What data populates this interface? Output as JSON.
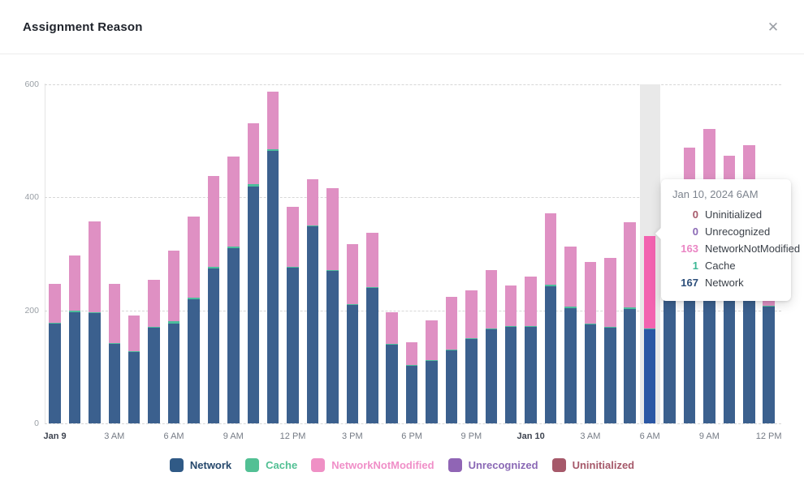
{
  "header": {
    "title": "Assignment Reason",
    "close_label": "✕"
  },
  "tooltip": {
    "title": "Jan 10, 2024 6AM",
    "rows": [
      {
        "value": "0",
        "label": "Uninitialized",
        "color": "#a6596a"
      },
      {
        "value": "0",
        "label": "Unrecognized",
        "color": "#8a68b5"
      },
      {
        "value": "163",
        "label": "NetworkNotModified",
        "color": "#ea85c4"
      },
      {
        "value": "1",
        "label": "Cache",
        "color": "#3db795"
      },
      {
        "value": "167",
        "label": "Network",
        "color": "#2b4d79"
      }
    ]
  },
  "chart_data": {
    "type": "bar",
    "stacked": true,
    "title": "Assignment Reason",
    "xlabel": "",
    "ylabel": "",
    "ylim": [
      0,
      600
    ],
    "y_ticks": [
      0,
      200,
      400,
      600
    ],
    "grid": "dashed horizontal",
    "legend_position": "bottom center",
    "bar_count": 37,
    "x_ticks": [
      {
        "index": 0,
        "label": "Jan 9",
        "bold": true
      },
      {
        "index": 3,
        "label": "3 AM",
        "bold": false
      },
      {
        "index": 6,
        "label": "6 AM",
        "bold": false
      },
      {
        "index": 9,
        "label": "9 AM",
        "bold": false
      },
      {
        "index": 12,
        "label": "12 PM",
        "bold": false
      },
      {
        "index": 15,
        "label": "3 PM",
        "bold": false
      },
      {
        "index": 18,
        "label": "6 PM",
        "bold": false
      },
      {
        "index": 21,
        "label": "9 PM",
        "bold": false
      },
      {
        "index": 24,
        "label": "Jan 10",
        "bold": true
      },
      {
        "index": 27,
        "label": "3 AM",
        "bold": false
      },
      {
        "index": 30,
        "label": "6 AM",
        "bold": false
      },
      {
        "index": 33,
        "label": "9 AM",
        "bold": false
      },
      {
        "index": 36,
        "label": "12 PM",
        "bold": false
      }
    ],
    "highlighted_index": 30,
    "stack_order": [
      "Network",
      "Cache",
      "NetworkNotModified",
      "Unrecognized",
      "Uninitialized"
    ],
    "series": [
      {
        "name": "Network",
        "values": [
          177,
          196,
          195,
          141,
          127,
          169,
          177,
          220,
          274,
          310,
          419,
          482,
          275,
          348,
          269,
          209,
          239,
          140,
          102,
          111,
          129,
          149,
          166,
          170,
          170,
          242,
          204,
          176,
          170,
          202,
          167,
          220,
          280,
          300,
          270,
          285,
          206
        ]
      },
      {
        "name": "Cache",
        "values": [
          1,
          3,
          2,
          1,
          1,
          2,
          3,
          2,
          2,
          3,
          4,
          3,
          2,
          2,
          2,
          2,
          2,
          1,
          1,
          1,
          1,
          2,
          2,
          2,
          2,
          3,
          2,
          1,
          1,
          3,
          1,
          2,
          2,
          2,
          2,
          2,
          2
        ]
      },
      {
        "name": "NetworkNotModified",
        "values": [
          69,
          98,
          160,
          104,
          63,
          83,
          126,
          144,
          161,
          158,
          108,
          101,
          106,
          81,
          145,
          106,
          96,
          55,
          40,
          70,
          94,
          84,
          103,
          72,
          88,
          127,
          106,
          109,
          121,
          151,
          163,
          140,
          205,
          218,
          201,
          205,
          110
        ]
      },
      {
        "name": "Unrecognized",
        "values": [
          0,
          0,
          0,
          0,
          0,
          0,
          0,
          0,
          0,
          0,
          0,
          0,
          0,
          0,
          0,
          0,
          0,
          0,
          0,
          0,
          0,
          0,
          0,
          0,
          0,
          0,
          0,
          0,
          0,
          0,
          0,
          0,
          0,
          0,
          0,
          0,
          0
        ]
      },
      {
        "name": "Uninitialized",
        "values": [
          0,
          0,
          0,
          0,
          0,
          0,
          0,
          0,
          0,
          0,
          0,
          0,
          0,
          0,
          0,
          0,
          0,
          0,
          0,
          0,
          0,
          0,
          0,
          0,
          0,
          0,
          0,
          0,
          0,
          0,
          0,
          0,
          0,
          0,
          0,
          0,
          0
        ]
      }
    ],
    "series_colors": {
      "Network": "#3b608e",
      "Cache": "#4cbd9c",
      "NetworkNotModified": "#df90c3",
      "Unrecognized": "#9065b5",
      "Uninitialized": "#a6596a"
    },
    "highlight_colors": {
      "Network": "#2b57a4",
      "Cache": "#3fbf9f",
      "NetworkNotModified": "#f263b0"
    },
    "highlight_band_color": "#e9e9e9",
    "legend": [
      {
        "name": "Network",
        "swatch": "#305a86",
        "text": "#27496d"
      },
      {
        "name": "Cache",
        "swatch": "#52c094",
        "text": "#52c094"
      },
      {
        "name": "NetworkNotModified",
        "swatch": "#ef90c5",
        "text": "#f08fc8"
      },
      {
        "name": "Unrecognized",
        "swatch": "#9065b5",
        "text": "#8a68b5"
      },
      {
        "name": "Uninitialized",
        "swatch": "#a6596a",
        "text": "#a6596a"
      }
    ]
  }
}
